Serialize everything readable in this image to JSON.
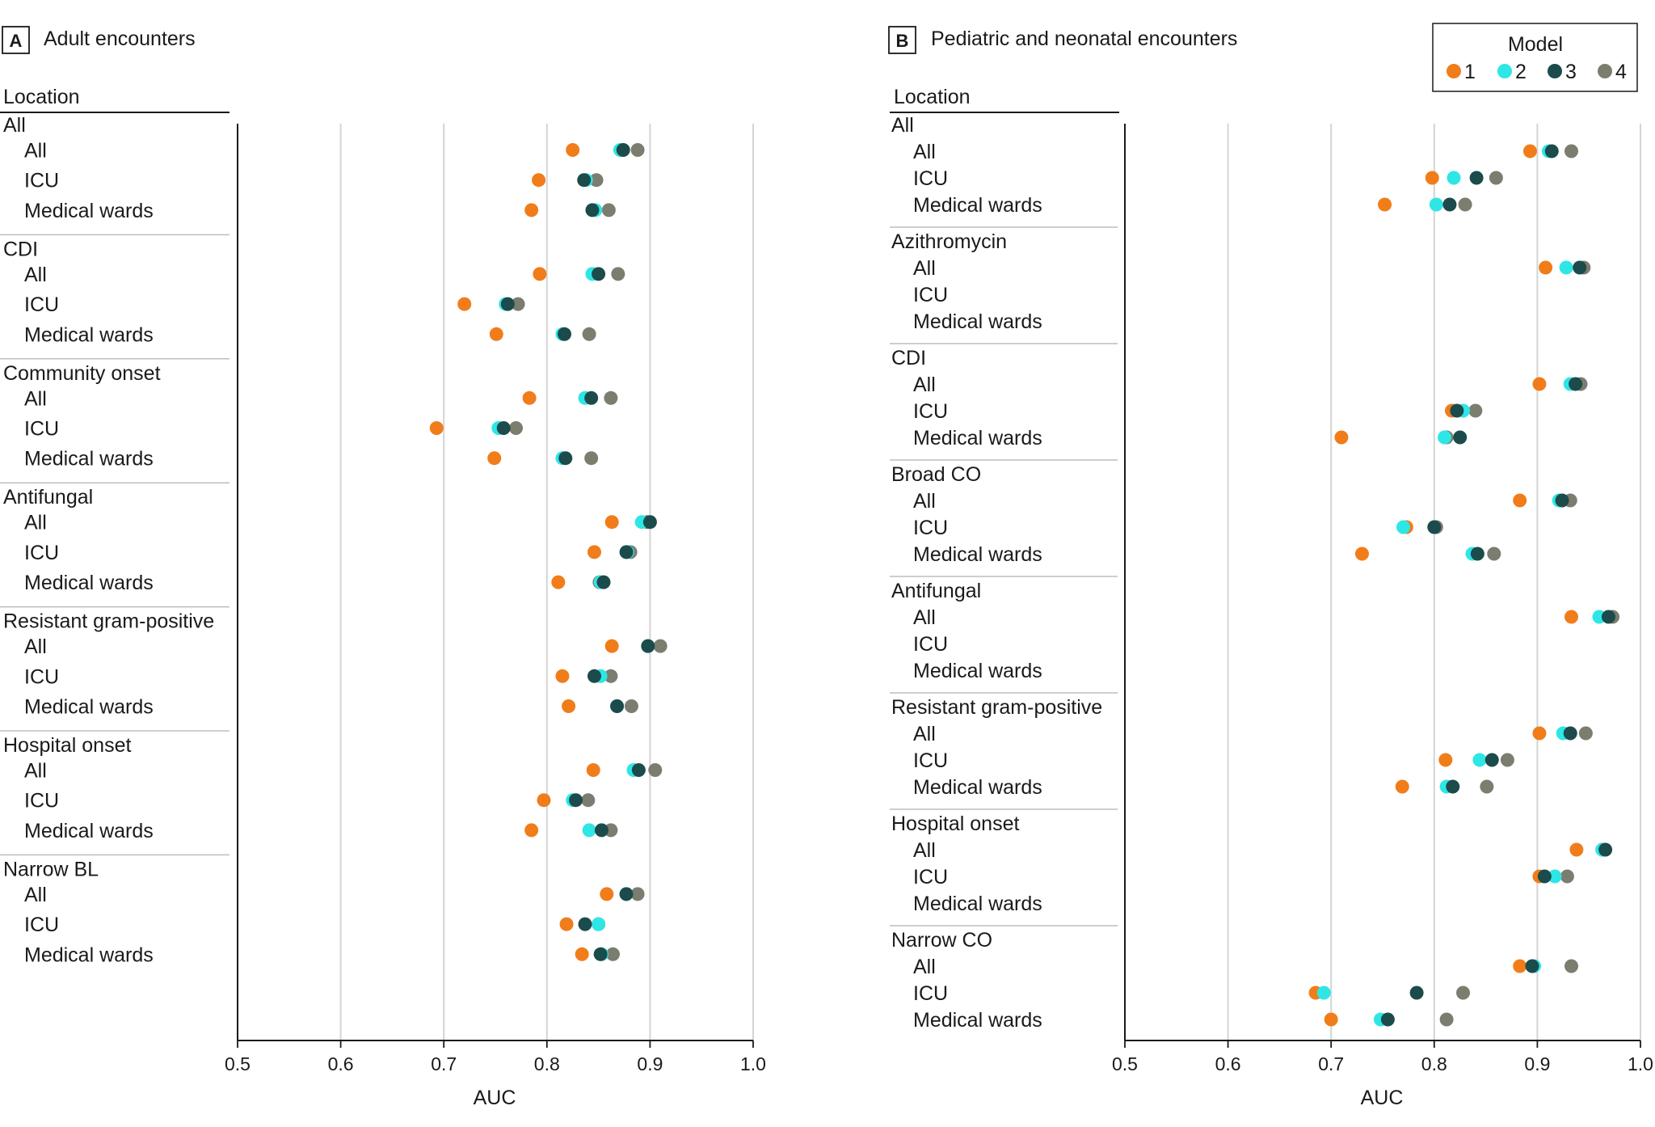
{
  "colors": {
    "m1": "#F07D1A",
    "m2": "#2EE6E6",
    "m3": "#1C4B4B",
    "m4": "#7B7D6F",
    "grid": "#d4d4d4",
    "axis": "#1a1a1a"
  },
  "legend": {
    "title": "Model",
    "items": [
      "1",
      "2",
      "3",
      "4"
    ]
  },
  "panels": [
    {
      "letter": "A",
      "title": "Adult encounters",
      "location_header": "Location",
      "xlabel": "AUC"
    },
    {
      "letter": "B",
      "title": "Pediatric and neonatal encounters",
      "location_header": "Location",
      "xlabel": "AUC"
    }
  ],
  "chart_data": [
    {
      "type": "scatter",
      "title": "Adult encounters",
      "xlabel": "AUC",
      "xlim": [
        0.5,
        1.0
      ],
      "xticks": [
        "0.5",
        "0.6",
        "0.7",
        "0.8",
        "0.9",
        "1.0"
      ],
      "series_names": [
        "Model 1",
        "Model 2",
        "Model 3",
        "Model 4"
      ],
      "groups": [
        {
          "name": "All",
          "rows": [
            {
              "label": "All",
              "values": [
                0.825,
                0.871,
                0.874,
                0.888
              ]
            },
            {
              "label": "ICU",
              "values": [
                0.792,
                0.838,
                0.836,
                0.848
              ]
            },
            {
              "label": "Medical wards",
              "values": [
                0.785,
                0.847,
                0.844,
                0.86
              ]
            }
          ]
        },
        {
          "name": "CDI",
          "rows": [
            {
              "label": "All",
              "values": [
                0.793,
                0.844,
                0.85,
                0.869
              ]
            },
            {
              "label": "ICU",
              "values": [
                0.72,
                0.76,
                0.762,
                0.772
              ]
            },
            {
              "label": "Medical wards",
              "values": [
                0.751,
                0.815,
                0.817,
                0.841
              ]
            }
          ]
        },
        {
          "name": "Community onset",
          "rows": [
            {
              "label": "All",
              "values": [
                0.783,
                0.837,
                0.843,
                0.862
              ]
            },
            {
              "label": "ICU",
              "values": [
                0.693,
                0.753,
                0.758,
                0.77
              ]
            },
            {
              "label": "Medical wards",
              "values": [
                0.749,
                0.815,
                0.818,
                0.843
              ]
            }
          ]
        },
        {
          "name": "Antifungal",
          "rows": [
            {
              "label": "All",
              "values": [
                0.863,
                0.892,
                0.9,
                0.897
              ]
            },
            {
              "label": "ICU",
              "values": [
                0.846,
                0.878,
                0.877,
                0.881
              ]
            },
            {
              "label": "Medical wards",
              "values": [
                0.811,
                0.852,
                0.855,
                0.851
              ]
            }
          ]
        },
        {
          "name": "Resistant gram-positive",
          "rows": [
            {
              "label": "All",
              "values": [
                0.863,
                0.898,
                0.898,
                0.91
              ]
            },
            {
              "label": "ICU",
              "values": [
                0.815,
                0.852,
                0.846,
                0.862
              ]
            },
            {
              "label": "Medical wards",
              "values": [
                0.821,
                0.868,
                0.868,
                0.882
              ]
            }
          ]
        },
        {
          "name": "Hospital onset",
          "rows": [
            {
              "label": "All",
              "values": [
                0.845,
                0.884,
                0.889,
                0.905
              ]
            },
            {
              "label": "ICU",
              "values": [
                0.797,
                0.825,
                0.828,
                0.84
              ]
            },
            {
              "label": "Medical wards",
              "values": [
                0.785,
                0.841,
                0.853,
                0.862
              ]
            }
          ]
        },
        {
          "name": "Narrow BL",
          "rows": [
            {
              "label": "All",
              "values": [
                0.858,
                0.877,
                0.877,
                0.888
              ]
            },
            {
              "label": "ICU",
              "values": [
                0.819,
                0.85,
                0.837,
                0.85
              ]
            },
            {
              "label": "Medical wards",
              "values": [
                0.834,
                0.853,
                0.852,
                0.864
              ]
            }
          ]
        }
      ]
    },
    {
      "type": "scatter",
      "title": "Pediatric and neonatal encounters",
      "xlabel": "AUC",
      "xlim": [
        0.5,
        1.0
      ],
      "xticks": [
        "0.5",
        "0.6",
        "0.7",
        "0.8",
        "0.9",
        "1.0"
      ],
      "series_names": [
        "Model 1",
        "Model 2",
        "Model 3",
        "Model 4"
      ],
      "groups": [
        {
          "name": "All",
          "rows": [
            {
              "label": "All",
              "values": [
                0.893,
                0.911,
                0.914,
                0.933
              ]
            },
            {
              "label": "ICU",
              "values": [
                0.798,
                0.819,
                0.841,
                0.86
              ]
            },
            {
              "label": "Medical wards",
              "values": [
                0.752,
                0.802,
                0.815,
                0.83
              ]
            }
          ]
        },
        {
          "name": "Azithromycin",
          "rows": [
            {
              "label": "All",
              "values": [
                0.908,
                0.928,
                0.941,
                0.945
              ]
            },
            {
              "label": "ICU",
              "values": null
            },
            {
              "label": "Medical wards",
              "values": null
            }
          ]
        },
        {
          "name": "CDI",
          "rows": [
            {
              "label": "All",
              "values": [
                0.902,
                0.932,
                0.937,
                0.942
              ]
            },
            {
              "label": "ICU",
              "values": [
                0.817,
                0.828,
                0.822,
                0.84
              ]
            },
            {
              "label": "Medical wards",
              "values": [
                0.71,
                0.81,
                0.825,
                0.812
              ]
            }
          ]
        },
        {
          "name": "Broad CO",
          "rows": [
            {
              "label": "All",
              "values": [
                0.883,
                0.921,
                0.924,
                0.932
              ]
            },
            {
              "label": "ICU",
              "values": [
                0.773,
                0.77,
                0.8,
                0.802
              ]
            },
            {
              "label": "Medical wards",
              "values": [
                0.73,
                0.837,
                0.842,
                0.858
              ]
            }
          ]
        },
        {
          "name": "Antifungal",
          "rows": [
            {
              "label": "All",
              "values": [
                0.933,
                0.96,
                0.969,
                0.973
              ]
            },
            {
              "label": "ICU",
              "values": null
            },
            {
              "label": "Medical wards",
              "values": null
            }
          ]
        },
        {
          "name": "Resistant gram-positive",
          "rows": [
            {
              "label": "All",
              "values": [
                0.902,
                0.925,
                0.932,
                0.947
              ]
            },
            {
              "label": "ICU",
              "values": [
                0.811,
                0.844,
                0.856,
                0.871
              ]
            },
            {
              "label": "Medical wards",
              "values": [
                0.769,
                0.812,
                0.818,
                0.851
              ]
            }
          ]
        },
        {
          "name": "Hospital onset",
          "rows": [
            {
              "label": "All",
              "values": [
                0.938,
                0.963,
                0.966,
                0.963
              ]
            },
            {
              "label": "ICU",
              "values": [
                0.902,
                0.917,
                0.907,
                0.929
              ]
            },
            {
              "label": "Medical wards",
              "values": null
            }
          ]
        },
        {
          "name": "Narrow CO",
          "rows": [
            {
              "label": "All",
              "values": [
                0.883,
                0.897,
                0.895,
                0.933
              ]
            },
            {
              "label": "ICU",
              "values": [
                0.685,
                0.693,
                0.783,
                0.828
              ]
            },
            {
              "label": "Medical wards",
              "values": [
                0.7,
                0.748,
                0.755,
                0.812
              ]
            }
          ]
        }
      ]
    }
  ]
}
